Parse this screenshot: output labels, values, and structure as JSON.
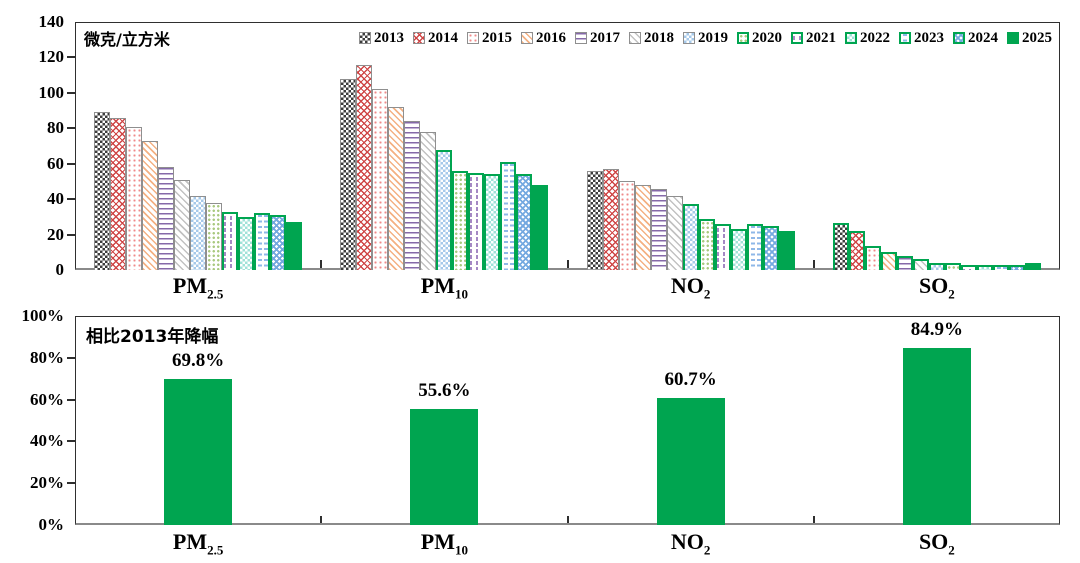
{
  "page": {
    "background": "#ffffff",
    "accent_green": "#00A550"
  },
  "top_chart": {
    "unit_label": "微克/立方米",
    "y_axis": {
      "min": 0,
      "max": 140,
      "step": 20,
      "tick_labels": [
        "0",
        "20",
        "40",
        "60",
        "80",
        "100",
        "120",
        "140"
      ]
    },
    "legend": [
      {
        "year": "2013",
        "pattern": "checker",
        "color": "#3d3d3d"
      },
      {
        "year": "2014",
        "pattern": "diagonal-crosshatch",
        "color": "#cf4646"
      },
      {
        "year": "2015",
        "pattern": "dots",
        "color": "#ef8a8a"
      },
      {
        "year": "2016",
        "pattern": "diagonal-lines",
        "color": "#f4b183"
      },
      {
        "year": "2017",
        "pattern": "horizontal-lines",
        "color": "#8569a8"
      },
      {
        "year": "2018",
        "pattern": "diagonal-lines",
        "color": "#c2c2c2"
      },
      {
        "year": "2019",
        "pattern": "checker",
        "color": "#a6c9ea"
      },
      {
        "year": "2020",
        "pattern": "dots",
        "color": "#a9c97f"
      },
      {
        "year": "2021",
        "pattern": "vertical-dashes",
        "color": "#a488c4"
      },
      {
        "year": "2022",
        "pattern": "checker",
        "color": "#9fe2d8"
      },
      {
        "year": "2023",
        "pattern": "horizontal-dashes",
        "color": "#8fb8e8"
      },
      {
        "year": "2024",
        "pattern": "diagonal-checker",
        "color": "#74a9e0"
      },
      {
        "year": "2025",
        "pattern": "solid",
        "color": "#00A550"
      }
    ],
    "groups": [
      {
        "base": "PM",
        "sub": "2.5",
        "values": [
          89,
          86,
          81,
          73,
          58,
          51,
          42,
          38,
          33,
          30,
          32,
          31,
          27
        ],
        "green_border_from_index": 8
      },
      {
        "base": "PM",
        "sub": "10",
        "values": [
          108,
          116,
          102,
          92,
          84,
          78,
          68,
          56,
          55,
          54,
          61,
          54,
          48
        ],
        "green_border_from_index": 6
      },
      {
        "base": "NO",
        "sub": "2",
        "values": [
          56,
          57,
          50,
          48,
          46,
          42,
          37,
          29,
          26,
          23,
          26,
          25,
          22
        ],
        "green_border_from_index": 6
      },
      {
        "base": "SO",
        "sub": "2",
        "values": [
          26.5,
          22,
          13.5,
          10,
          8,
          6,
          4,
          4,
          3,
          3,
          3,
          3,
          4
        ],
        "green_border_from_index": 0
      }
    ]
  },
  "bottom_chart": {
    "title": "相比2013年降幅",
    "y_axis": {
      "min": 0,
      "max": 100,
      "step": 20,
      "tick_labels": [
        "0%",
        "20%",
        "40%",
        "60%",
        "80%",
        "100%"
      ]
    },
    "bar_color": "#00A550",
    "bars": [
      {
        "base": "PM",
        "sub": "2.5",
        "value_pct": 69.8,
        "label": "69.8%"
      },
      {
        "base": "PM",
        "sub": "10",
        "value_pct": 55.6,
        "label": "55.6%"
      },
      {
        "base": "NO",
        "sub": "2",
        "value_pct": 60.7,
        "label": "60.7%"
      },
      {
        "base": "SO",
        "sub": "2",
        "value_pct": 84.9,
        "label": "84.9%"
      }
    ]
  },
  "chart_data": [
    {
      "type": "bar",
      "title": "微克/立方米",
      "categories": [
        "PM2.5",
        "PM10",
        "NO2",
        "SO2"
      ],
      "series": [
        {
          "name": "2013",
          "values": [
            89,
            108,
            56,
            26.5
          ]
        },
        {
          "name": "2014",
          "values": [
            86,
            116,
            57,
            22
          ]
        },
        {
          "name": "2015",
          "values": [
            81,
            102,
            50,
            13.5
          ]
        },
        {
          "name": "2016",
          "values": [
            73,
            92,
            48,
            10
          ]
        },
        {
          "name": "2017",
          "values": [
            58,
            84,
            46,
            8
          ]
        },
        {
          "name": "2018",
          "values": [
            51,
            78,
            42,
            6
          ]
        },
        {
          "name": "2019",
          "values": [
            42,
            68,
            37,
            4
          ]
        },
        {
          "name": "2020",
          "values": [
            38,
            56,
            29,
            4
          ]
        },
        {
          "name": "2021",
          "values": [
            33,
            55,
            26,
            3
          ]
        },
        {
          "name": "2022",
          "values": [
            30,
            54,
            23,
            3
          ]
        },
        {
          "name": "2023",
          "values": [
            32,
            61,
            26,
            3
          ]
        },
        {
          "name": "2024",
          "values": [
            31,
            54,
            25,
            3
          ]
        },
        {
          "name": "2025",
          "values": [
            27,
            48,
            22,
            4
          ]
        }
      ],
      "xlabel": "",
      "ylabel": "微克/立方米",
      "ylim": [
        0,
        140
      ],
      "grid": false,
      "legend_position": "top-inside"
    },
    {
      "type": "bar",
      "title": "相比2013年降幅",
      "categories": [
        "PM2.5",
        "PM10",
        "NO2",
        "SO2"
      ],
      "values": [
        69.8,
        55.6,
        60.7,
        84.9
      ],
      "data_labels": [
        "69.8%",
        "55.6%",
        "60.7%",
        "84.9%"
      ],
      "xlabel": "",
      "ylabel": "%",
      "ylim": [
        0,
        100
      ],
      "grid": false,
      "bar_color": "#00A550"
    }
  ]
}
